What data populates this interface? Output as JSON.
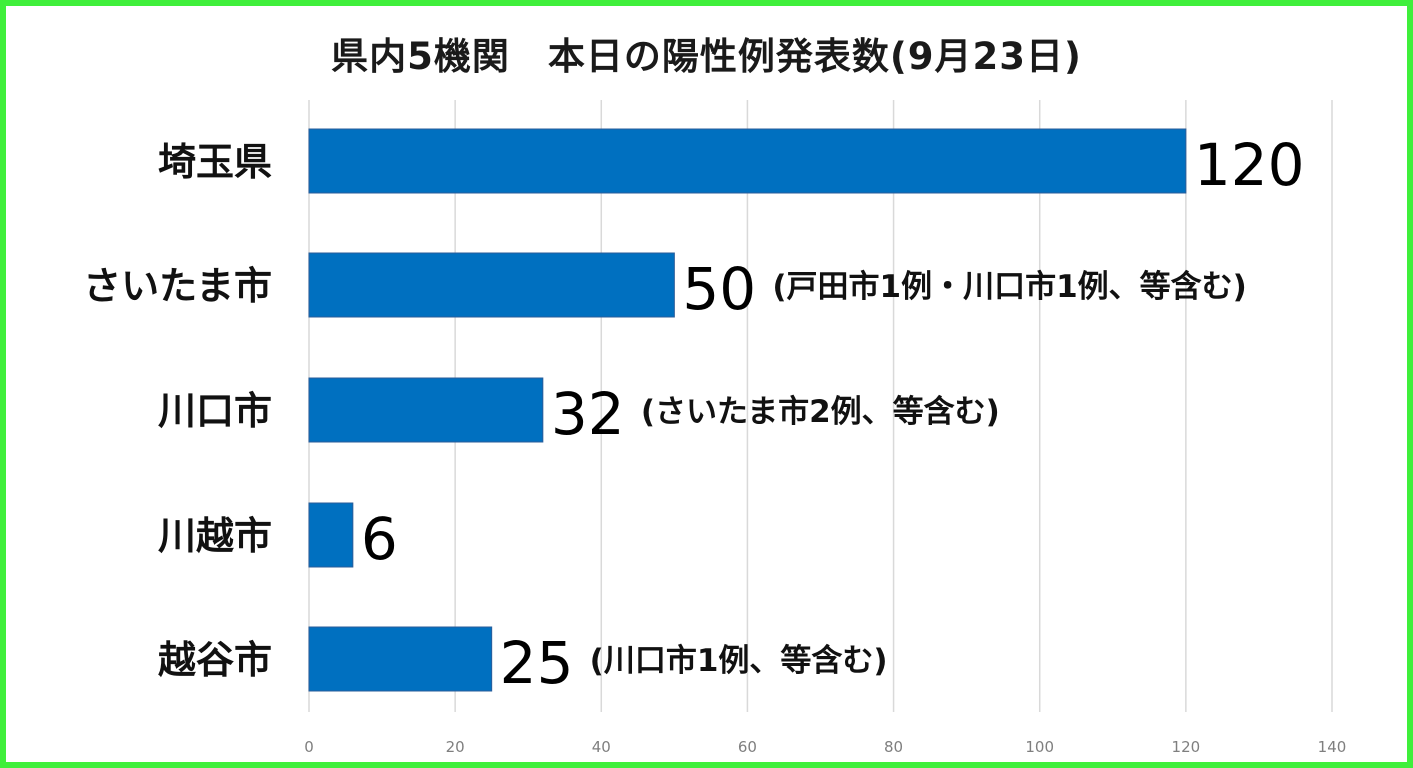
{
  "chart_data": {
    "type": "bar",
    "orientation": "horizontal",
    "title": "県内5機関　本日の陽性例発表数(9月23日)",
    "categories": [
      "埼玉県",
      "さいたま市",
      "川口市",
      "川越市",
      "越谷市"
    ],
    "values": [
      120,
      50,
      32,
      6,
      25
    ],
    "data_labels": [
      "120",
      "50",
      "32",
      "6",
      "25"
    ],
    "annotations": [
      "",
      "(戸田市1例・川口市1例、等含む)",
      "(さいたま市2例、等含む)",
      "",
      "(川口市1例、等含む)"
    ],
    "xlim": [
      0,
      140
    ],
    "x_ticks": [
      "0",
      "20",
      "40",
      "60",
      "80",
      "100",
      "120",
      "140"
    ],
    "grid": true,
    "legend": "none"
  },
  "colors": {
    "bar": "#0070c0",
    "frame": "#3fef3b",
    "grid": "#d9d9d9"
  }
}
